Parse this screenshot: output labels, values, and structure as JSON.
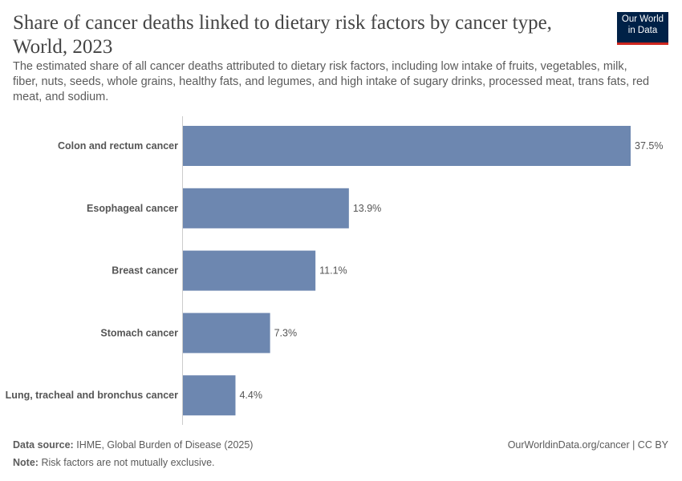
{
  "header": {
    "title": "Share of cancer deaths linked to dietary risk factors by cancer type, World, 2023",
    "subtitle": "The estimated share of all cancer deaths attributed to dietary risk factors, including low intake of fruits, vegetables, milk, fiber, nuts, seeds, whole grains, healthy fats, and legumes, and high intake of sugary drinks, processed meat, trans fats, red meat, and sodium.",
    "logo": "Our World in Data"
  },
  "chart_data": {
    "type": "bar",
    "orientation": "horizontal",
    "categories": [
      "Colon and rectum cancer",
      "Esophageal cancer",
      "Breast cancer",
      "Stomach cancer",
      "Lung, tracheal and bronchus cancer"
    ],
    "values": [
      37.5,
      13.9,
      11.1,
      7.3,
      4.4
    ],
    "value_labels": [
      "37.5%",
      "13.9%",
      "11.1%",
      "7.3%",
      "4.4%"
    ],
    "unit": "%",
    "bar_color": "#6d87b0",
    "grid": false
  },
  "footer": {
    "source_label": "Data source:",
    "source": "IHME, Global Burden of Disease (2025)",
    "note_label": "Note:",
    "note": "Risk factors are not mutually exclusive.",
    "credit": "OurWorldinData.org/cancer | CC BY"
  }
}
